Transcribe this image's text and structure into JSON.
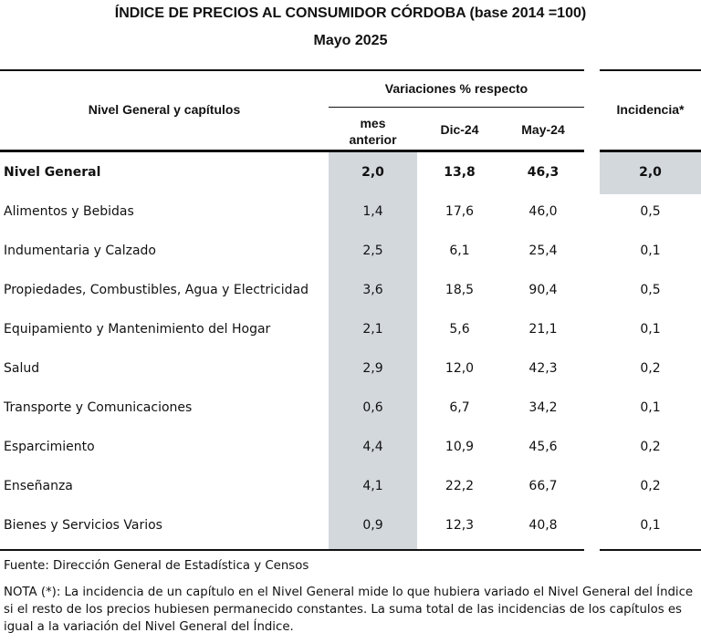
{
  "title": "ÍNDICE DE PRECIOS AL CONSUMIDOR CÓRDOBA (base 2014 =100)",
  "subtitle": "Mayo 2025",
  "headers": {
    "chapters": "Nivel General y capítulos",
    "variations": "Variaciones % respecto",
    "mes_anterior_1": "mes",
    "mes_anterior_2": "anterior",
    "dic": "Dic-24",
    "may": "May-24",
    "incidencia": "Incidencia*"
  },
  "highlight_color": "#d3d8dd",
  "rows": [
    {
      "label": "Nivel General",
      "mes": "2,0",
      "dic": "13,8",
      "may": "46,3",
      "inc": "2,0"
    },
    {
      "label": "Alimentos y Bebidas",
      "mes": "1,4",
      "dic": "17,6",
      "may": "46,0",
      "inc": "0,5"
    },
    {
      "label": "Indumentaria y Calzado",
      "mes": "2,5",
      "dic": "6,1",
      "may": "25,4",
      "inc": "0,1"
    },
    {
      "label": "Propiedades, Combustibles, Agua y Electricidad",
      "mes": "3,6",
      "dic": "18,5",
      "may": "90,4",
      "inc": "0,5"
    },
    {
      "label": "Equipamiento y Mantenimiento del Hogar",
      "mes": "2,1",
      "dic": "5,6",
      "may": "21,1",
      "inc": "0,1"
    },
    {
      "label": "Salud",
      "mes": "2,9",
      "dic": "12,0",
      "may": "42,3",
      "inc": "0,2"
    },
    {
      "label": "Transporte y Comunicaciones",
      "mes": "0,6",
      "dic": "6,7",
      "may": "34,2",
      "inc": "0,1"
    },
    {
      "label": "Esparcimiento",
      "mes": "4,4",
      "dic": "10,9",
      "may": "45,6",
      "inc": "0,2"
    },
    {
      "label": "Enseñanza",
      "mes": "4,1",
      "dic": "22,2",
      "may": "66,7",
      "inc": "0,2"
    },
    {
      "label": "Bienes y Servicios Varios",
      "mes": "0,9",
      "dic": "12,3",
      "may": "40,8",
      "inc": "0,1"
    }
  ],
  "source": "Fuente: Dirección General de Estadística y Censos",
  "note": "NOTA (*): La incidencia de un capítulo en el Nivel General mide lo que hubiera variado el Nivel General del Índice si el resto de los precios hubiesen permanecido constantes. La suma total de las incidencias de los capítulos es igual a la variación del Nivel General del Índice."
}
